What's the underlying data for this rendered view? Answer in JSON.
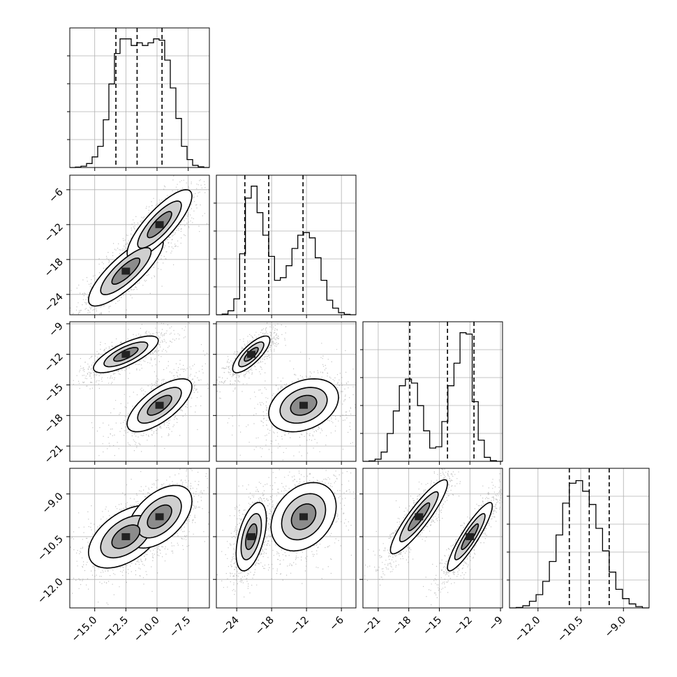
{
  "chart_data": {
    "type": "corner",
    "params": [
      {
        "ticks": [
          "−15.0",
          "−12.5",
          "−10.0",
          "−7.5"
        ],
        "tick_values": [
          -15.0,
          -12.5,
          -10.0,
          -7.5
        ],
        "range": [
          -17.0,
          -5.8
        ],
        "quantiles": [
          -13.3,
          -11.6,
          -9.6
        ]
      },
      {
        "ticks": [
          "−24",
          "−18",
          "−12",
          "−6"
        ],
        "tick_values": [
          -24,
          -18,
          -12,
          -6
        ],
        "range": [
          -27.5,
          -3.5
        ],
        "quantiles": [
          -22.6,
          -18.5,
          -12.6
        ]
      },
      {
        "ticks": [
          "−21",
          "−18",
          "−15",
          "−12",
          "−9"
        ],
        "tick_values": [
          -21,
          -18,
          -15,
          -12,
          -9
        ],
        "range": [
          -22.5,
          -8.8
        ],
        "quantiles": [
          -17.9,
          -14.2,
          -11.6
        ]
      },
      {
        "ticks": [
          "−12.0",
          "−10.5",
          "−9.0"
        ],
        "tick_values": [
          -12.0,
          -10.5,
          -9.0
        ],
        "range": [
          -13.0,
          -8.1
        ],
        "quantiles": [
          -10.9,
          -10.2,
          -9.5
        ]
      }
    ],
    "histograms": [
      {
        "counts": [
          0.003,
          0.01,
          0.03,
          0.08,
          0.16,
          0.36,
          0.63,
          0.86,
          0.97,
          0.97,
          0.92,
          0.94,
          0.92,
          0.94,
          0.97,
          0.96,
          0.81,
          0.6,
          0.37,
          0.16,
          0.06,
          0.016,
          0.005
        ]
      },
      {
        "counts": [
          0.005,
          0.03,
          0.12,
          0.46,
          0.88,
          0.97,
          0.77,
          0.6,
          0.44,
          0.26,
          0.28,
          0.37,
          0.5,
          0.6,
          0.62,
          0.58,
          0.43,
          0.26,
          0.11,
          0.05,
          0.016,
          0.003
        ]
      },
      {
        "counts": [
          0.003,
          0.016,
          0.07,
          0.21,
          0.38,
          0.57,
          0.62,
          0.59,
          0.42,
          0.23,
          0.1,
          0.11,
          0.3,
          0.57,
          0.74,
          0.97,
          0.96,
          0.45,
          0.16,
          0.03,
          0.005
        ]
      },
      {
        "counts": [
          0.003,
          0.016,
          0.05,
          0.1,
          0.2,
          0.35,
          0.55,
          0.79,
          0.94,
          0.96,
          0.88,
          0.78,
          0.6,
          0.43,
          0.27,
          0.14,
          0.07,
          0.03,
          0.01
        ]
      }
    ],
    "pairs": [
      {
        "x": 0,
        "y": 1,
        "modes": [
          {
            "mx": -12.5,
            "my": -20.0,
            "sx": 1.5,
            "sy": 3.0,
            "rho": 0.82,
            "w": 0.5
          },
          {
            "mx": -9.8,
            "my": -12.0,
            "sx": 1.3,
            "sy": 3.0,
            "rho": 0.82,
            "w": 0.5
          }
        ]
      },
      {
        "x": 0,
        "y": 2,
        "modes": [
          {
            "mx": -12.5,
            "my": -12.0,
            "sx": 1.3,
            "sy": 0.9,
            "rho": 0.75,
            "w": 0.5
          },
          {
            "mx": -9.8,
            "my": -17.0,
            "sx": 1.3,
            "sy": 1.3,
            "rho": 0.7,
            "w": 0.5
          }
        ]
      },
      {
        "x": 1,
        "y": 2,
        "modes": [
          {
            "mx": -21.5,
            "my": -12.0,
            "sx": 1.6,
            "sy": 0.9,
            "rho": 0.78,
            "w": 0.5
          },
          {
            "mx": -12.5,
            "my": -17.0,
            "sx": 3.0,
            "sy": 1.3,
            "rho": 0.3,
            "w": 0.5
          }
        ]
      },
      {
        "x": 0,
        "y": 3,
        "modes": [
          {
            "mx": -12.5,
            "my": -10.5,
            "sx": 1.5,
            "sy": 0.55,
            "rho": 0.5,
            "w": 0.5
          },
          {
            "mx": -9.8,
            "my": -9.8,
            "sx": 1.3,
            "sy": 0.55,
            "rho": 0.5,
            "w": 0.5
          }
        ]
      },
      {
        "x": 1,
        "y": 3,
        "modes": [
          {
            "mx": -21.5,
            "my": -10.5,
            "sx": 1.3,
            "sy": 0.6,
            "rho": 0.5,
            "w": 0.5
          },
          {
            "mx": -12.5,
            "my": -9.8,
            "sx": 2.8,
            "sy": 0.6,
            "rho": 0.3,
            "w": 0.5
          }
        ]
      },
      {
        "x": 2,
        "y": 3,
        "modes": [
          {
            "mx": -17.0,
            "my": -9.8,
            "sx": 1.4,
            "sy": 0.65,
            "rho": 0.9,
            "w": 0.5
          },
          {
            "mx": -12.0,
            "my": -10.5,
            "sx": 1.1,
            "sy": 0.6,
            "rho": 0.9,
            "w": 0.5
          }
        ]
      }
    ],
    "grid": true
  }
}
